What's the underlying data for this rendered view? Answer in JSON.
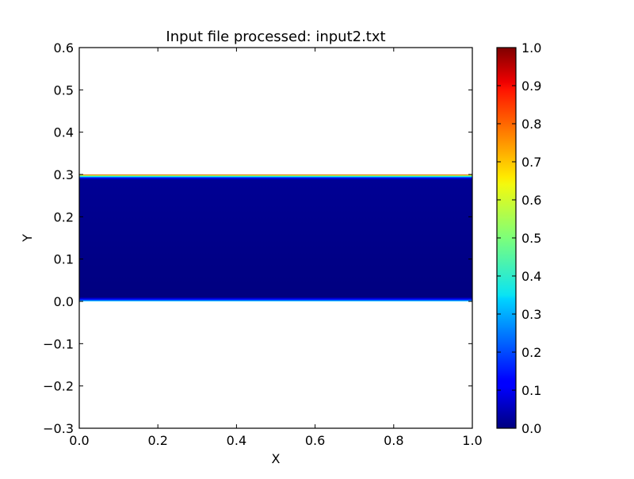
{
  "chart_data": {
    "type": "heatmap",
    "title": "Input file processed: input2.txt",
    "xlabel": "X",
    "ylabel": "Y",
    "xlim": [
      0.0,
      1.0
    ],
    "ylim": [
      -0.3,
      0.6
    ],
    "x_ticks": [
      0.0,
      0.2,
      0.4,
      0.6,
      0.8,
      1.0
    ],
    "x_tick_labels": [
      "0.0",
      "0.2",
      "0.4",
      "0.6",
      "0.8",
      "1.0"
    ],
    "y_ticks": [
      -0.3,
      -0.2,
      -0.1,
      0.0,
      0.1,
      0.2,
      0.3,
      0.4,
      0.5,
      0.6
    ],
    "y_tick_labels": [
      "−0.3",
      "−0.2",
      "−0.1",
      "0.0",
      "0.1",
      "0.2",
      "0.3",
      "0.4",
      "0.5",
      "0.6"
    ],
    "grid": false,
    "colormap": "jet",
    "clim": [
      0.0,
      1.0
    ],
    "colorbar_ticks": [
      0.0,
      0.1,
      0.2,
      0.3,
      0.4,
      0.5,
      0.6,
      0.7,
      0.8,
      0.9,
      1.0
    ],
    "colorbar_tick_labels": [
      "0.0",
      "0.1",
      "0.2",
      "0.3",
      "0.4",
      "0.5",
      "0.6",
      "0.7",
      "0.8",
      "0.9",
      "1.0"
    ],
    "field": {
      "x_range": [
        0.0,
        1.0
      ],
      "y_range": [
        0.0,
        0.3
      ],
      "interior_value": 0.0,
      "profile": [
        {
          "y": 0.3,
          "value": 0.9
        },
        {
          "y": 0.298,
          "value": 0.6
        },
        {
          "y": 0.295,
          "value": 0.35
        },
        {
          "y": 0.292,
          "value": 0.12
        },
        {
          "y": 0.288,
          "value": 0.02
        },
        {
          "y": 0.01,
          "value": 0.0
        },
        {
          "y": 0.005,
          "value": 0.12
        },
        {
          "y": 0.002,
          "value": 0.25
        },
        {
          "y": 0.0,
          "value": 0.35
        }
      ]
    }
  }
}
